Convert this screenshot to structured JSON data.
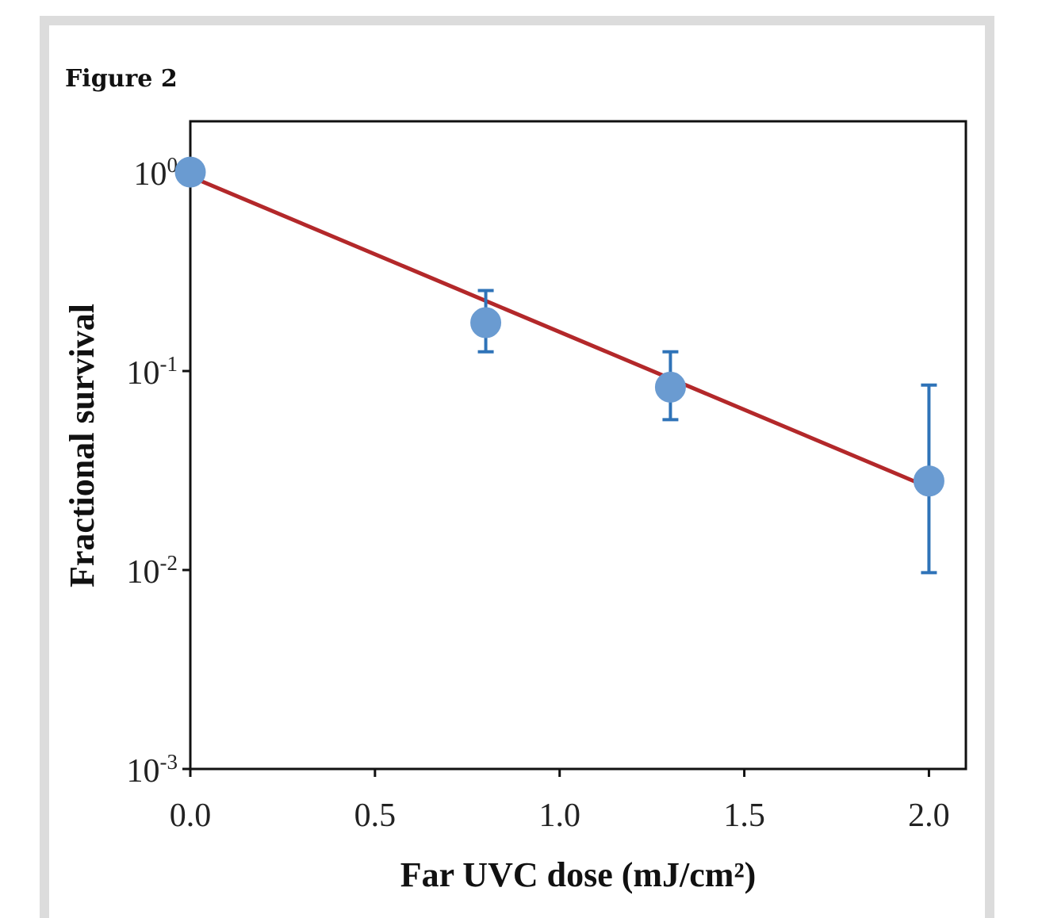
{
  "figure": {
    "title": "Figure 2"
  },
  "chart_data": {
    "type": "scatter",
    "xlabel": "Far UVC dose (mJ/cm²)",
    "ylabel": "Fractional survival",
    "xlim": [
      0.0,
      2.1
    ],
    "ylim": [
      0.001,
      1.8
    ],
    "yscale": "log",
    "grid": false,
    "x_ticks": [
      {
        "value": 0.0,
        "label": "0.0"
      },
      {
        "value": 0.5,
        "label": "0.5"
      },
      {
        "value": 1.0,
        "label": "1.0"
      },
      {
        "value": 1.5,
        "label": "1.5"
      },
      {
        "value": 2.0,
        "label": "2.0"
      }
    ],
    "y_ticks": [
      {
        "value": 1,
        "base": "10",
        "exp": "0"
      },
      {
        "value": 0.1,
        "base": "10",
        "exp": "-1"
      },
      {
        "value": 0.01,
        "base": "10",
        "exp": "-2"
      },
      {
        "value": 0.001,
        "base": "10",
        "exp": "-3"
      }
    ],
    "series": [
      {
        "x": [
          0.0,
          0.8,
          1.3,
          2.0
        ],
        "y": [
          1.0,
          0.175,
          0.083,
          0.028
        ],
        "y_err_low": [
          1.0,
          0.125,
          0.057,
          0.0097
        ],
        "y_err_high": [
          1.0,
          0.254,
          0.125,
          0.085
        ],
        "marker_color": "#6a9bd1",
        "error_color": "#2f73b8"
      }
    ],
    "fit_line": {
      "x": [
        0.0,
        2.0
      ],
      "y": [
        0.95,
        0.026
      ],
      "color": "#b3282a"
    }
  }
}
